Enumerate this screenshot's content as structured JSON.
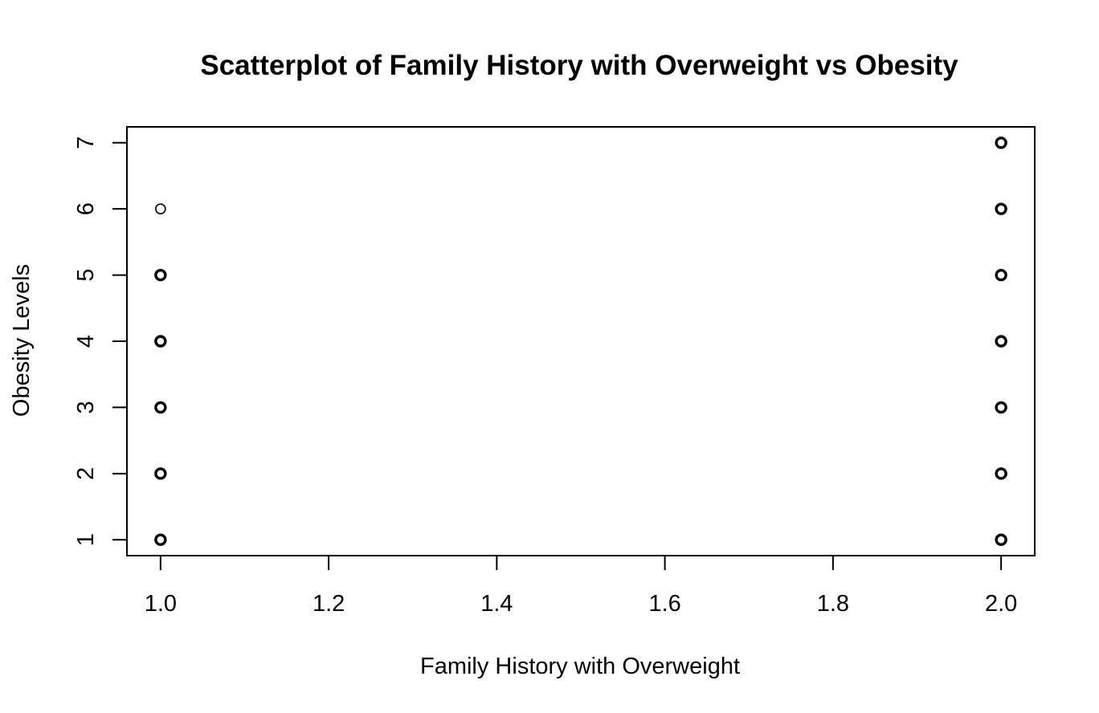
{
  "chart_data": {
    "type": "scatter",
    "title": "Scatterplot of Family History with Overweight vs Obesity",
    "xlabel": "Family History with Overweight",
    "ylabel": "Obesity Levels",
    "xlim": [
      0.96,
      2.04
    ],
    "ylim": [
      0.76,
      7.24
    ],
    "x_ticks": [
      1.0,
      1.2,
      1.4,
      1.6,
      1.8,
      2.0
    ],
    "x_tick_labels": [
      "1.0",
      "1.2",
      "1.4",
      "1.6",
      "1.8",
      "2.0"
    ],
    "y_ticks": [
      1,
      2,
      3,
      4,
      5,
      6,
      7
    ],
    "y_tick_labels": [
      "1",
      "2",
      "3",
      "4",
      "5",
      "6",
      "7"
    ],
    "grid": false,
    "marker": "open-circle",
    "series": [
      {
        "points": [
          {
            "x": 1,
            "y": 1,
            "overplotted": true
          },
          {
            "x": 1,
            "y": 2,
            "overplotted": true
          },
          {
            "x": 1,
            "y": 3,
            "overplotted": true
          },
          {
            "x": 1,
            "y": 4,
            "overplotted": true
          },
          {
            "x": 1,
            "y": 5,
            "overplotted": true
          },
          {
            "x": 1,
            "y": 6,
            "overplotted": false
          },
          {
            "x": 2,
            "y": 1,
            "overplotted": true
          },
          {
            "x": 2,
            "y": 2,
            "overplotted": true
          },
          {
            "x": 2,
            "y": 3,
            "overplotted": true
          },
          {
            "x": 2,
            "y": 4,
            "overplotted": true
          },
          {
            "x": 2,
            "y": 5,
            "overplotted": true
          },
          {
            "x": 2,
            "y": 6,
            "overplotted": true
          },
          {
            "x": 2,
            "y": 7,
            "overplotted": true
          }
        ]
      }
    ],
    "colors": {
      "marker": "#000000",
      "axis": "#000000",
      "background": "#ffffff"
    }
  }
}
